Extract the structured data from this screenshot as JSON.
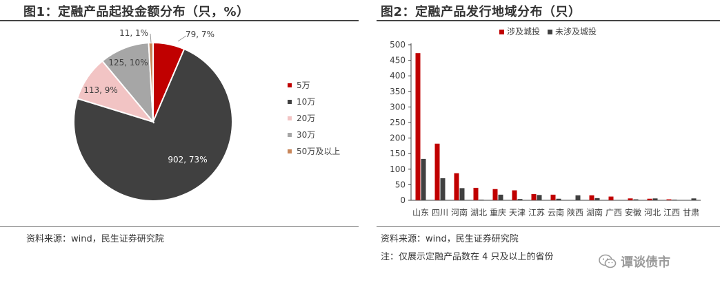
{
  "left_panel": {
    "title": "图1：定融产品起投金额分布（只，%）",
    "source": "资料来源：wind，民生证券研究院"
  },
  "right_panel": {
    "title": "图2：定融产品发行地域分布（只）",
    "source": "资料来源：wind，民生证券研究院",
    "note": "注：仅展示定融产品数在 4 只及以上的省份"
  },
  "watermark": {
    "text": "谭谈债市",
    "icon": "wechat-icon"
  },
  "chart_data": [
    {
      "type": "pie",
      "title": "图1：定融产品起投金额分布（只，%）",
      "slices": [
        {
          "label": "5万",
          "value": 79,
          "percent": 7,
          "data_label": "79, 7%",
          "color": "#c00000"
        },
        {
          "label": "10万",
          "value": 902,
          "percent": 73,
          "data_label": "902, 73%",
          "color": "#404040"
        },
        {
          "label": "20万",
          "value": 113,
          "percent": 9,
          "data_label": "113, 9%",
          "color": "#f2c4c4"
        },
        {
          "label": "30万",
          "value": 125,
          "percent": 10,
          "data_label": "125, 10%",
          "color": "#a6a6a6"
        },
        {
          "label": "50万及以上",
          "value": 11,
          "percent": 1,
          "data_label": "11, 1%",
          "color": "#c8865a"
        }
      ],
      "legend": "right"
    },
    {
      "type": "bar",
      "title": "图2：定融产品发行地域分布（只）",
      "categories": [
        "山东",
        "四川",
        "河南",
        "湖北",
        "重庆",
        "天津",
        "江苏",
        "云南",
        "陕西",
        "湖南",
        "广西",
        "安徽",
        "河北",
        "江西",
        "甘肃"
      ],
      "series": [
        {
          "name": "涉及城投",
          "color": "#c00000",
          "values": [
            473,
            182,
            87,
            40,
            36,
            32,
            20,
            18,
            0,
            16,
            12,
            6,
            5,
            3,
            0
          ]
        },
        {
          "name": "未涉及城投",
          "color": "#404040",
          "values": [
            133,
            71,
            39,
            2,
            18,
            4,
            17,
            5,
            16,
            7,
            0,
            3,
            6,
            2,
            6
          ]
        }
      ],
      "ylim": [
        0,
        500
      ],
      "yticks": [
        0,
        50,
        100,
        150,
        200,
        250,
        300,
        350,
        400,
        450,
        500
      ],
      "legend": "top-center",
      "grid": false
    }
  ]
}
